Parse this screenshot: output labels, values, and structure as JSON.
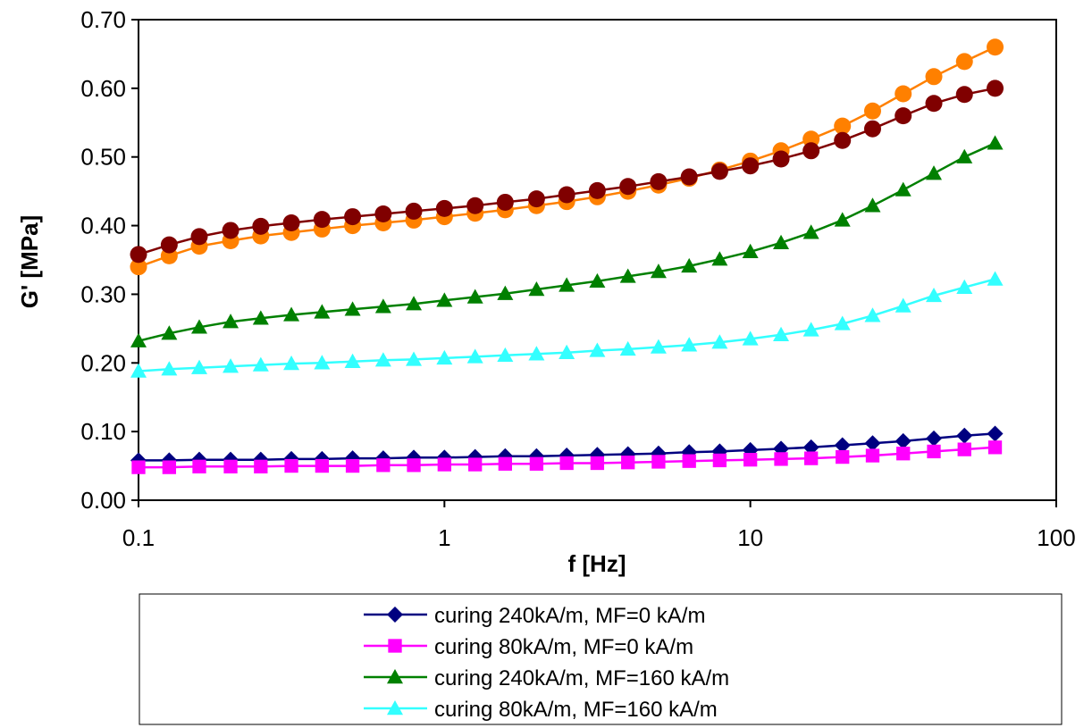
{
  "chart_data": {
    "type": "line",
    "title": "",
    "xlabel": "f [Hz]",
    "ylabel": "G' [MPa]",
    "x_scale": "log",
    "xlim": [
      0.1,
      100
    ],
    "ylim": [
      0.0,
      0.7
    ],
    "x_ticks": [
      0.1,
      1,
      10,
      100
    ],
    "x_tick_labels": [
      "0.1",
      "1",
      "10",
      "100"
    ],
    "y_ticks": [
      0.0,
      0.1,
      0.2,
      0.3,
      0.4,
      0.5,
      0.6,
      0.7
    ],
    "y_tick_labels": [
      "0.00",
      "0.10",
      "0.20",
      "0.30",
      "0.40",
      "0.50",
      "0.60",
      "0.70"
    ],
    "grid": false,
    "legend_position": "bottom",
    "x": [
      0.1,
      0.126,
      0.158,
      0.2,
      0.251,
      0.316,
      0.398,
      0.501,
      0.631,
      0.794,
      1.0,
      1.26,
      1.58,
      2.0,
      2.51,
      3.16,
      3.98,
      5.01,
      6.31,
      7.94,
      10.0,
      12.6,
      15.8,
      20.0,
      25.1,
      31.6,
      39.8,
      50.1,
      63.1
    ],
    "series": [
      {
        "name": "curing 240kA/m, MF=0 kA/m",
        "color": "#000080",
        "marker": "diamond",
        "in_legend": true,
        "values": [
          0.058,
          0.058,
          0.059,
          0.059,
          0.059,
          0.06,
          0.06,
          0.061,
          0.061,
          0.062,
          0.062,
          0.063,
          0.064,
          0.064,
          0.065,
          0.066,
          0.067,
          0.068,
          0.07,
          0.071,
          0.073,
          0.075,
          0.077,
          0.08,
          0.083,
          0.086,
          0.09,
          0.094,
          0.097
        ]
      },
      {
        "name": "curing 80kA/m, MF=0 kA/m",
        "color": "#ff00ff",
        "marker": "square",
        "in_legend": true,
        "values": [
          0.048,
          0.048,
          0.049,
          0.049,
          0.049,
          0.05,
          0.05,
          0.05,
          0.051,
          0.051,
          0.052,
          0.052,
          0.053,
          0.053,
          0.054,
          0.054,
          0.055,
          0.056,
          0.057,
          0.058,
          0.059,
          0.06,
          0.061,
          0.063,
          0.065,
          0.068,
          0.071,
          0.074,
          0.077
        ]
      },
      {
        "name": "curing 240kA/m, MF=160 kA/m",
        "color": "#008000",
        "marker": "triangle",
        "in_legend": true,
        "values": [
          0.232,
          0.243,
          0.252,
          0.26,
          0.265,
          0.27,
          0.274,
          0.278,
          0.282,
          0.286,
          0.291,
          0.296,
          0.301,
          0.307,
          0.313,
          0.319,
          0.326,
          0.333,
          0.341,
          0.351,
          0.362,
          0.375,
          0.39,
          0.408,
          0.429,
          0.452,
          0.476,
          0.5,
          0.52
        ]
      },
      {
        "name": "curing 80kA/m, MF=160 kA/m",
        "color": "#33ffff",
        "marker": "triangle",
        "in_legend": true,
        "values": [
          0.188,
          0.191,
          0.193,
          0.195,
          0.197,
          0.199,
          0.2,
          0.202,
          0.204,
          0.205,
          0.207,
          0.209,
          0.211,
          0.213,
          0.215,
          0.218,
          0.22,
          0.223,
          0.226,
          0.23,
          0.235,
          0.241,
          0.248,
          0.257,
          0.269,
          0.283,
          0.298,
          0.31,
          0.322
        ]
      },
      {
        "name": "",
        "color": "#ff8000",
        "marker": "circle",
        "in_legend": false,
        "values": [
          0.34,
          0.356,
          0.37,
          0.378,
          0.385,
          0.39,
          0.395,
          0.4,
          0.404,
          0.408,
          0.413,
          0.418,
          0.423,
          0.429,
          0.435,
          0.442,
          0.45,
          0.459,
          0.469,
          0.481,
          0.494,
          0.509,
          0.526,
          0.545,
          0.567,
          0.592,
          0.617,
          0.639,
          0.66
        ]
      },
      {
        "name": "",
        "color": "#800000",
        "marker": "circle",
        "in_legend": false,
        "values": [
          0.358,
          0.372,
          0.384,
          0.393,
          0.399,
          0.404,
          0.409,
          0.413,
          0.417,
          0.421,
          0.425,
          0.429,
          0.434,
          0.439,
          0.445,
          0.451,
          0.457,
          0.464,
          0.471,
          0.479,
          0.487,
          0.497,
          0.509,
          0.524,
          0.541,
          0.56,
          0.578,
          0.591,
          0.6
        ]
      }
    ]
  }
}
